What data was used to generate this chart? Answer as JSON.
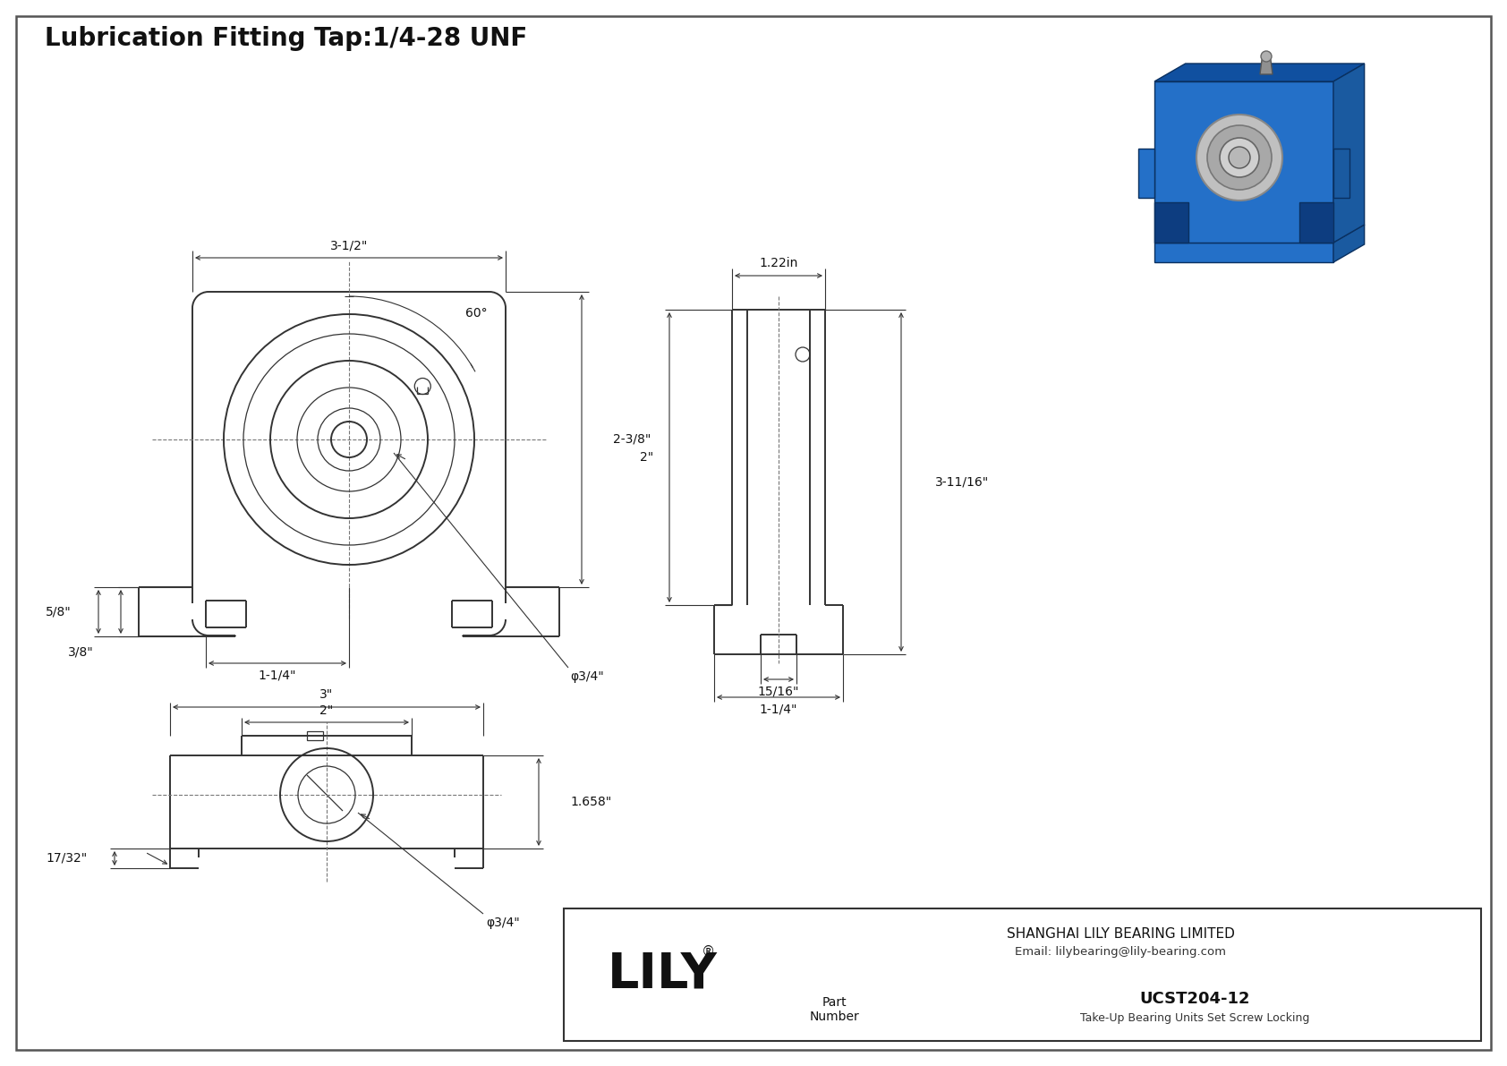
{
  "bg_color": "#ffffff",
  "border_color": "#333333",
  "line_color": "#333333",
  "dim_color": "#333333",
  "title": "Lubrication Fitting Tap:1/4-28 UNF",
  "title_fontsize": 20,
  "part_number": "UCST204-12",
  "part_desc": "Take-Up Bearing Units Set Screw Locking",
  "company": "SHANGHAI LILY BEARING LIMITED",
  "email": "Email: lilybearing@lily-bearing.com",
  "dims": {
    "front_width": "3-1/2\"",
    "front_height": "2-3/8\"",
    "front_slot_width": "1-1/4\"",
    "front_slot_height": "3/8\"",
    "front_tab_height": "5/8\"",
    "bore": "φ3/4\"",
    "angle": "60°",
    "side_depth": "1.22in",
    "side_height": "2\"",
    "total_height": "3-11/16\"",
    "side_slot": "15/16\"",
    "side_base": "1-1/4\"",
    "bottom_total": "3\"",
    "bottom_inner": "2\"",
    "bottom_height": "1.658\"",
    "bottom_slot": "17/32\"",
    "bottom_bore": "φ3/4\""
  }
}
